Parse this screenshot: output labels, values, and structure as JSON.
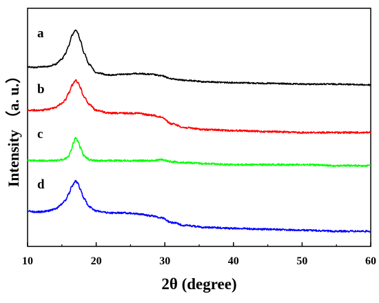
{
  "chart_data": {
    "type": "line",
    "title": "",
    "xlabel": "2θ (degree)",
    "ylabel": "Intensity （a. u.）",
    "xlim": [
      10,
      60
    ],
    "xticks": [
      "10",
      "20",
      "30",
      "40",
      "50",
      "60"
    ],
    "yticks_shown": false,
    "grid": false,
    "legend": "inline labels at left of each curve",
    "series": [
      {
        "name": "a",
        "color": "#000000",
        "x": [
          10,
          11,
          12,
          13,
          14,
          15,
          15.5,
          16,
          16.5,
          17,
          17.3,
          17.7,
          18.2,
          19,
          20,
          22,
          24,
          26,
          28,
          29.5,
          31,
          33,
          36,
          40,
          45,
          50,
          55,
          60
        ],
        "y": [
          0.52,
          0.51,
          0.52,
          0.52,
          0.55,
          0.62,
          0.69,
          0.8,
          0.94,
          1.0,
          0.97,
          0.86,
          0.7,
          0.55,
          0.44,
          0.41,
          0.42,
          0.43,
          0.42,
          0.4,
          0.36,
          0.34,
          0.32,
          0.31,
          0.3,
          0.29,
          0.29,
          0.28
        ]
      },
      {
        "name": "b",
        "color": "#ff0000",
        "x": [
          10,
          11,
          12,
          13,
          14,
          15,
          15.5,
          16,
          16.5,
          17,
          17.3,
          17.7,
          18.2,
          19,
          20,
          22,
          24,
          26,
          28,
          29.5,
          31,
          33,
          36,
          40,
          45,
          50,
          55,
          60
        ],
        "y": [
          0.58,
          0.58,
          0.58,
          0.59,
          0.61,
          0.65,
          0.69,
          0.76,
          0.84,
          0.89,
          0.87,
          0.81,
          0.72,
          0.64,
          0.58,
          0.55,
          0.55,
          0.55,
          0.53,
          0.51,
          0.44,
          0.4,
          0.38,
          0.37,
          0.36,
          0.35,
          0.35,
          0.35
        ]
      },
      {
        "name": "c",
        "color": "#00ff00",
        "x": [
          10,
          11,
          12,
          13,
          14,
          15,
          15.5,
          16,
          16.4,
          16.7,
          17,
          17.3,
          17.7,
          18.2,
          18.6,
          19,
          20,
          22,
          24,
          26,
          28,
          29.5,
          31,
          33,
          36,
          40,
          45,
          50,
          55,
          60
        ],
        "y": [
          0.55,
          0.55,
          0.55,
          0.55,
          0.55,
          0.56,
          0.57,
          0.6,
          0.66,
          0.73,
          0.78,
          0.75,
          0.68,
          0.6,
          0.58,
          0.56,
          0.55,
          0.55,
          0.55,
          0.55,
          0.55,
          0.56,
          0.54,
          0.53,
          0.52,
          0.51,
          0.51,
          0.51,
          0.5,
          0.5
        ]
      },
      {
        "name": "d",
        "color": "#0000ff",
        "x": [
          10,
          11,
          12,
          13,
          14,
          15,
          15.5,
          16,
          16.5,
          17,
          17.3,
          17.7,
          18.2,
          19,
          20,
          22,
          24,
          26,
          28,
          29.5,
          31,
          33,
          36,
          40,
          45,
          50,
          55,
          60
        ],
        "y": [
          0.56,
          0.55,
          0.55,
          0.56,
          0.58,
          0.63,
          0.67,
          0.74,
          0.82,
          0.87,
          0.85,
          0.78,
          0.69,
          0.6,
          0.56,
          0.54,
          0.54,
          0.53,
          0.51,
          0.49,
          0.44,
          0.41,
          0.39,
          0.38,
          0.37,
          0.36,
          0.35,
          0.35
        ]
      }
    ]
  }
}
